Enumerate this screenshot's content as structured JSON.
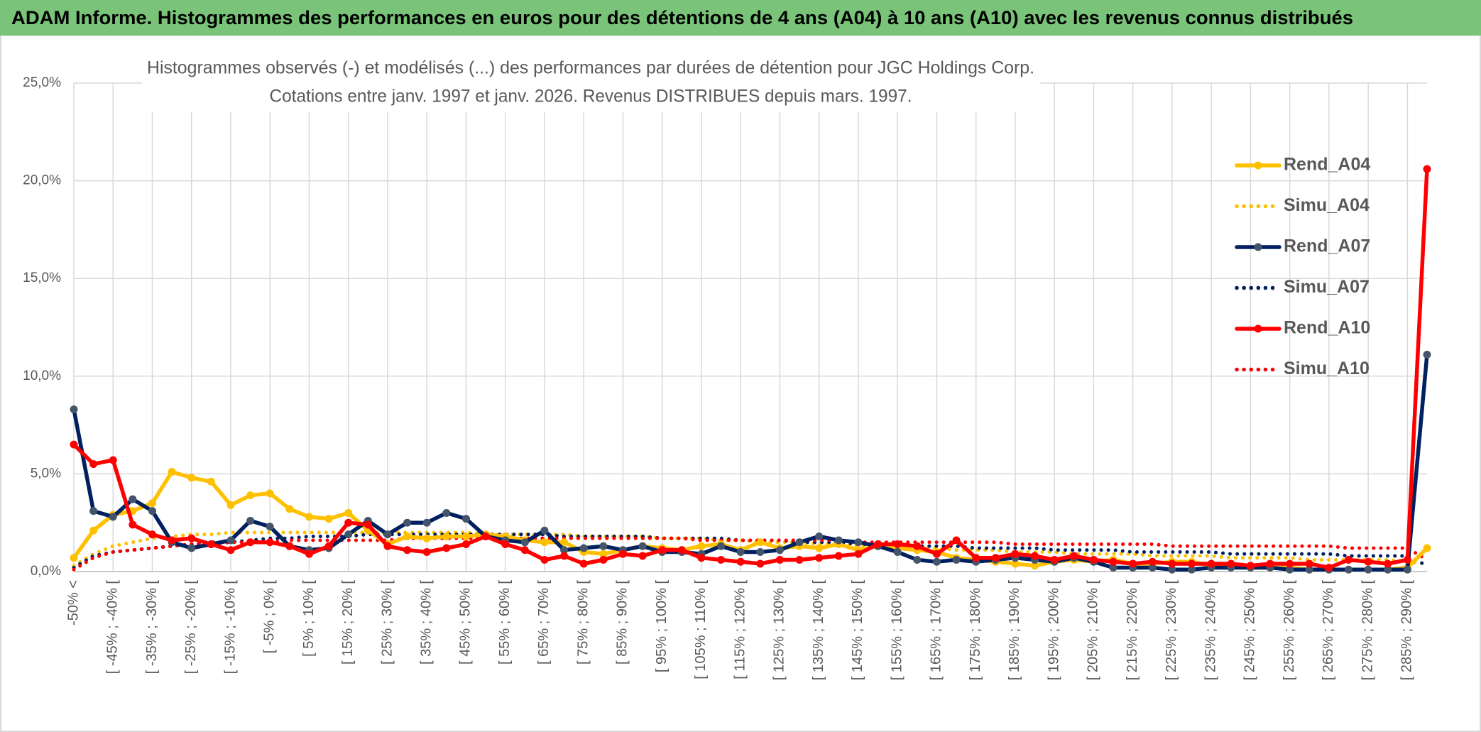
{
  "chart_data": {
    "type": "line",
    "title": "ADAM Informe. Histogrammes des performances en euros pour des détentions de 4 ans (A04) à 10 ans (A10) avec les revenus connus distribués",
    "subtitle": [
      "Histogrammes observés (-) et modélisés (...) des performances par durées de détention pour JGC Holdings Corp.",
      "Cotations entre janv. 1997 et janv. 2026. Revenus DISTRIBUES depuis mars. 1997."
    ],
    "categories": [
      "-50% <",
      null,
      "[ -45% ; -40% [",
      null,
      "[ -35% ; -30% [",
      null,
      "[ -25% ; -20% [",
      null,
      "[ -15% ; -10% [",
      null,
      "[ -5% ; 0% [",
      null,
      "[ 5% ; 10% [",
      null,
      "[ 15% ; 20% [",
      null,
      "[ 25% ; 30% [",
      null,
      "[ 35% ; 40% [",
      null,
      "[ 45% ; 50% [",
      null,
      "[ 55% ; 60% [",
      null,
      "[ 65% ; 70% [",
      null,
      "[ 75% ; 80% [",
      null,
      "[ 85% ; 90% [",
      null,
      "[ 95% ; 100% [",
      null,
      "[ 105% ; 110% [",
      null,
      "[ 115% ; 120% [",
      null,
      "[ 125% ; 130% [",
      null,
      "[ 135% ; 140% [",
      null,
      "[ 145% ; 150% [",
      null,
      "[ 155% ; 160% [",
      null,
      "[ 165% ; 170% [",
      null,
      "[ 175% ; 180% [",
      null,
      "[ 185% ; 190% [",
      null,
      "[ 195% ; 200% [",
      null,
      "[ 205% ; 210% [",
      null,
      "[ 215% ; 220% [",
      null,
      "[ 225% ; 230% [",
      null,
      "[ 235% ; 240% [",
      null,
      "[ 245% ; 250% [",
      null,
      "[ 255% ; 260% [",
      null,
      "[ 265% ; 270% [",
      null,
      "[ 275% ; 280% [",
      null,
      "[ 285% ; 290% [",
      null
    ],
    "series": [
      {
        "name": "Rend_A04",
        "color": "#ffc000",
        "style": "solid",
        "marker_color": "#ffc000",
        "values": [
          0.7,
          2.1,
          2.9,
          3.1,
          3.5,
          5.1,
          4.8,
          4.6,
          3.4,
          3.9,
          4.0,
          3.2,
          2.8,
          2.7,
          3.0,
          2.1,
          1.4,
          1.8,
          1.7,
          1.8,
          1.8,
          1.9,
          1.8,
          1.6,
          1.5,
          1.5,
          1.0,
          0.9,
          1.1,
          1.3,
          1.2,
          1.1,
          1.3,
          1.4,
          1.1,
          1.5,
          1.2,
          1.3,
          1.2,
          1.4,
          1.1,
          1.3,
          1.2,
          1.1,
          1.0,
          0.7,
          0.6,
          0.5,
          0.4,
          0.3,
          0.5,
          0.6,
          0.5,
          0.6,
          0.4,
          0.4,
          0.5,
          0.5,
          0.3,
          0.3,
          0.2,
          0.2,
          0.2,
          0.1,
          0.1,
          0.1,
          0.1,
          0.1,
          0.2,
          1.2
        ]
      },
      {
        "name": "Simu_A04",
        "color": "#ffc000",
        "style": "dotted",
        "values": [
          0.3,
          0.9,
          1.3,
          1.5,
          1.7,
          1.8,
          1.9,
          1.9,
          2.0,
          2.0,
          2.0,
          2.0,
          2.0,
          2.0,
          2.0,
          2.0,
          2.0,
          2.0,
          2.0,
          2.0,
          2.0,
          1.9,
          1.9,
          1.9,
          1.9,
          1.9,
          1.8,
          1.8,
          1.8,
          1.8,
          1.7,
          1.7,
          1.7,
          1.6,
          1.6,
          1.5,
          1.5,
          1.5,
          1.4,
          1.4,
          1.3,
          1.3,
          1.3,
          1.2,
          1.2,
          1.1,
          1.1,
          1.1,
          1.0,
          1.0,
          1.0,
          0.9,
          0.9,
          0.9,
          0.9,
          0.8,
          0.8,
          0.8,
          0.8,
          0.7,
          0.7,
          0.7,
          0.7,
          0.6,
          0.6,
          0.6,
          0.6,
          0.6,
          0.5,
          0.4
        ]
      },
      {
        "name": "Rend_A07",
        "color": "#002060",
        "style": "solid",
        "marker_color": "#44546a",
        "values": [
          8.3,
          3.1,
          2.8,
          3.7,
          3.1,
          1.5,
          1.2,
          1.4,
          1.6,
          2.6,
          2.3,
          1.3,
          1.1,
          1.2,
          1.9,
          2.6,
          1.9,
          2.5,
          2.5,
          3.0,
          2.7,
          1.8,
          1.6,
          1.5,
          2.1,
          1.1,
          1.2,
          1.3,
          1.1,
          1.3,
          1.0,
          1.0,
          0.9,
          1.3,
          1.0,
          1.0,
          1.1,
          1.5,
          1.8,
          1.6,
          1.5,
          1.3,
          1.0,
          0.6,
          0.5,
          0.6,
          0.5,
          0.6,
          0.7,
          0.6,
          0.5,
          0.7,
          0.5,
          0.2,
          0.2,
          0.2,
          0.1,
          0.1,
          0.2,
          0.2,
          0.2,
          0.2,
          0.1,
          0.1,
          0.1,
          0.1,
          0.1,
          0.1,
          0.1,
          11.1
        ]
      },
      {
        "name": "Simu_A07",
        "color": "#002060",
        "style": "dotted",
        "values": [
          0.2,
          0.8,
          1.0,
          1.1,
          1.2,
          1.3,
          1.4,
          1.5,
          1.5,
          1.6,
          1.7,
          1.7,
          1.8,
          1.8,
          1.8,
          1.9,
          1.9,
          1.9,
          1.9,
          1.9,
          1.9,
          1.9,
          1.9,
          1.9,
          1.9,
          1.8,
          1.8,
          1.8,
          1.8,
          1.8,
          1.7,
          1.7,
          1.7,
          1.7,
          1.6,
          1.6,
          1.6,
          1.5,
          1.5,
          1.5,
          1.4,
          1.4,
          1.4,
          1.3,
          1.3,
          1.3,
          1.2,
          1.2,
          1.2,
          1.2,
          1.1,
          1.1,
          1.1,
          1.1,
          1.0,
          1.0,
          1.0,
          1.0,
          1.0,
          0.9,
          0.9,
          0.9,
          0.9,
          0.9,
          0.9,
          0.8,
          0.8,
          0.8,
          0.8,
          0.3
        ]
      },
      {
        "name": "Rend_A10",
        "color": "#ff0000",
        "style": "solid",
        "marker_color": "#ff0000",
        "values": [
          6.5,
          5.5,
          5.7,
          2.4,
          1.9,
          1.6,
          1.7,
          1.4,
          1.1,
          1.5,
          1.5,
          1.3,
          0.9,
          1.3,
          2.5,
          2.4,
          1.3,
          1.1,
          1.0,
          1.2,
          1.4,
          1.8,
          1.4,
          1.1,
          0.6,
          0.8,
          0.4,
          0.6,
          0.9,
          0.8,
          1.1,
          1.1,
          0.7,
          0.6,
          0.5,
          0.4,
          0.6,
          0.6,
          0.7,
          0.8,
          0.9,
          1.4,
          1.4,
          1.3,
          0.9,
          1.6,
          0.7,
          0.7,
          0.9,
          0.8,
          0.6,
          0.8,
          0.6,
          0.5,
          0.4,
          0.5,
          0.4,
          0.4,
          0.4,
          0.4,
          0.3,
          0.4,
          0.4,
          0.4,
          0.2,
          0.6,
          0.5,
          0.4,
          0.6,
          20.6
        ]
      },
      {
        "name": "Simu_A10",
        "color": "#ff0000",
        "style": "dotted",
        "values": [
          0.1,
          0.7,
          1.0,
          1.1,
          1.2,
          1.3,
          1.4,
          1.4,
          1.5,
          1.5,
          1.5,
          1.6,
          1.6,
          1.6,
          1.6,
          1.6,
          1.6,
          1.7,
          1.7,
          1.7,
          1.7,
          1.7,
          1.7,
          1.7,
          1.7,
          1.7,
          1.7,
          1.7,
          1.7,
          1.7,
          1.7,
          1.7,
          1.6,
          1.6,
          1.6,
          1.6,
          1.6,
          1.6,
          1.6,
          1.6,
          1.5,
          1.5,
          1.5,
          1.5,
          1.5,
          1.5,
          1.5,
          1.5,
          1.4,
          1.4,
          1.4,
          1.4,
          1.4,
          1.4,
          1.4,
          1.4,
          1.3,
          1.3,
          1.3,
          1.3,
          1.3,
          1.3,
          1.3,
          1.3,
          1.3,
          1.2,
          1.2,
          1.2,
          1.2,
          0.6
        ]
      }
    ],
    "ylim": [
      0,
      25
    ],
    "yticks": [
      {
        "value": 0,
        "label": "0,0%"
      },
      {
        "value": 5,
        "label": "5,0%"
      },
      {
        "value": 10,
        "label": "10,0%"
      },
      {
        "value": 15,
        "label": "15,0%"
      },
      {
        "value": 20,
        "label": "20,0%"
      },
      {
        "value": 25,
        "label": "25,0%"
      }
    ],
    "grid": true,
    "legend": "right"
  }
}
